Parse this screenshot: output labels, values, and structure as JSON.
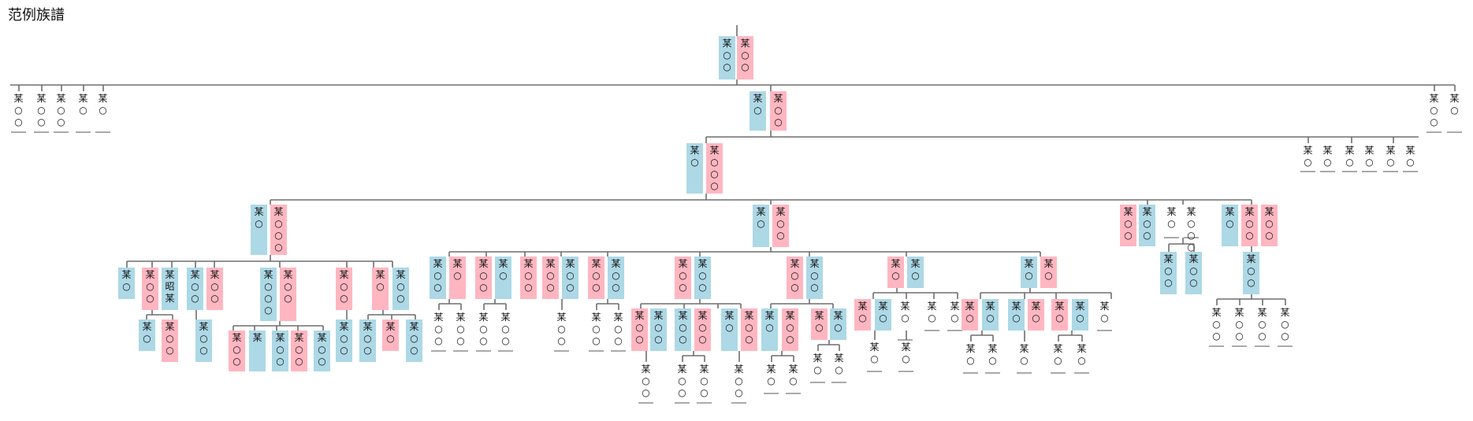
{
  "title": "范例族譜",
  "glyphs": {
    "surname": "某",
    "circle": "○",
    "zhao": "昭"
  },
  "colors": {
    "male": "#add8e6",
    "female": "#ffb6c1",
    "line": "#6e6e6e"
  }
}
